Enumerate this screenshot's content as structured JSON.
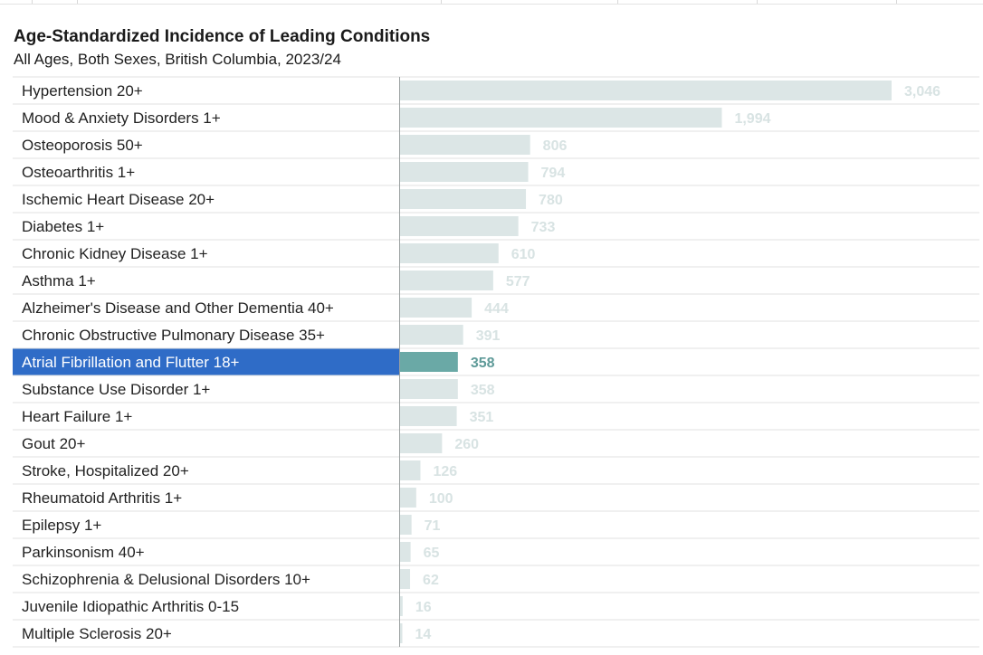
{
  "chart_data": {
    "type": "bar",
    "orientation": "horizontal",
    "title": "Age-Standardized Incidence of Leading Conditions",
    "subtitle": "All Ages, Both Sexes, British Columbia, 2023/24",
    "categories": [
      "Hypertension 20+",
      "Mood & Anxiety Disorders 1+",
      "Osteoporosis 50+",
      "Osteoarthritis 1+",
      "Ischemic Heart Disease 20+",
      "Diabetes 1+",
      "Chronic Kidney Disease 1+",
      "Asthma 1+",
      "Alzheimer's Disease and Other Dementia 40+",
      "Chronic Obstructive Pulmonary Disease 35+",
      "Atrial Fibrillation and Flutter 18+",
      "Substance Use Disorder 1+",
      "Heart Failure 1+",
      "Gout 20+",
      "Stroke, Hospitalized 20+",
      "Rheumatoid Arthritis 1+",
      "Epilepsy 1+",
      "Parkinsonism 40+",
      "Schizophrenia & Delusional Disorders 10+",
      "Juvenile Idiopathic Arthritis 0-15",
      "Multiple Sclerosis 20+"
    ],
    "values": [
      3046,
      1994,
      806,
      794,
      780,
      733,
      610,
      577,
      444,
      391,
      358,
      358,
      351,
      260,
      126,
      100,
      71,
      65,
      62,
      16,
      14
    ],
    "value_labels": [
      "3,046",
      "1,994",
      "806",
      "794",
      "780",
      "733",
      "610",
      "577",
      "444",
      "391",
      "358",
      "358",
      "351",
      "260",
      "126",
      "100",
      "71",
      "65",
      "62",
      "16",
      "14"
    ],
    "selected_index": 10,
    "xlim": [
      0,
      3046
    ],
    "grid": false,
    "legend": "none",
    "colors": {
      "bar": "#dce6e6",
      "bar_selected": "#6aa9a6",
      "value_text": "#d8e3e3",
      "value_text_selected": "#5e9a98",
      "row_selected_bg": "#2f6cc7",
      "row_selected_text": "#ffffff",
      "row_text": "#222222",
      "row_divider": "#e2e2e2"
    }
  }
}
